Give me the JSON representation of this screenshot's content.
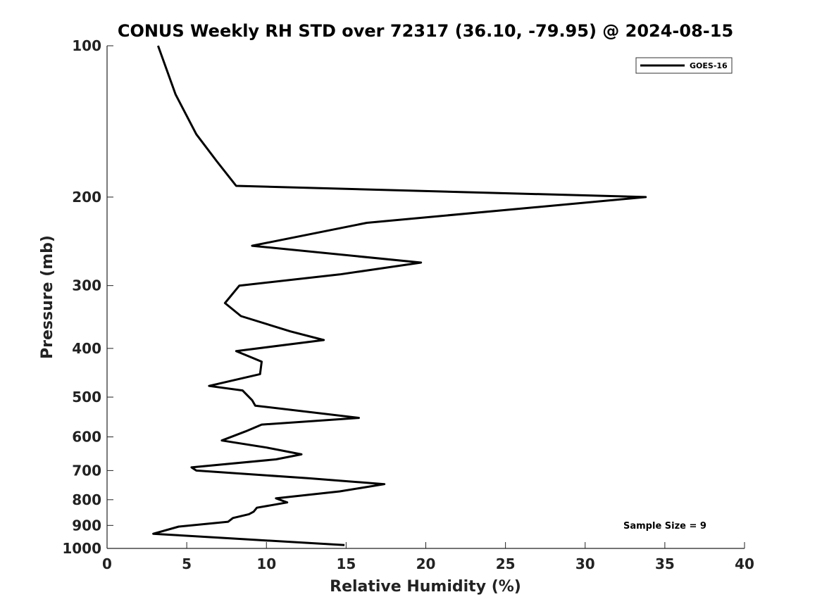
{
  "chart_data": {
    "type": "line",
    "title": "CONUS Weekly RH STD over 72317 (36.10, -79.95) @ 2024-08-15",
    "xlabel": "Relative Humidity (%)",
    "ylabel": "Pressure (mb)",
    "xlim": [
      0,
      40
    ],
    "ylim": [
      100,
      1000
    ],
    "y_scale": "log",
    "y_reversed": true,
    "x_ticks": [
      "0",
      "5",
      "10",
      "15",
      "20",
      "25",
      "30",
      "35",
      "40"
    ],
    "y_ticks": [
      "100",
      "200",
      "300",
      "400",
      "500",
      "600",
      "700",
      "800",
      "900",
      "1000"
    ],
    "grid": false,
    "legend_position": "top-right",
    "annotation": "Sample Size = 9",
    "series": [
      {
        "name": "GOES-16",
        "color": "#000000",
        "x": [
          3.2,
          4.3,
          5.6,
          6.9,
          8.1,
          33.8,
          16.3,
          9.1,
          19.7,
          14.6,
          8.3,
          7.4,
          8.4,
          11.5,
          13.6,
          8.1,
          9.7,
          9.6,
          6.4,
          8.5,
          9.1,
          9.3,
          15.8,
          9.7,
          8.7,
          7.2,
          10.0,
          12.2,
          10.6,
          5.3,
          5.6,
          12.6,
          17.4,
          14.6,
          10.6,
          11.3,
          9.4,
          9.2,
          8.9,
          7.9,
          7.6,
          4.5,
          2.9,
          14.9
        ],
        "y": [
          100,
          125,
          150,
          170,
          190,
          200,
          225,
          250,
          270,
          285,
          300,
          325,
          345,
          370,
          385,
          405,
          425,
          450,
          475,
          485,
          507,
          520,
          550,
          567,
          585,
          610,
          630,
          650,
          665,
          690,
          700,
          725,
          745,
          770,
          795,
          810,
          830,
          845,
          855,
          870,
          885,
          905,
          935,
          985
        ]
      }
    ]
  }
}
